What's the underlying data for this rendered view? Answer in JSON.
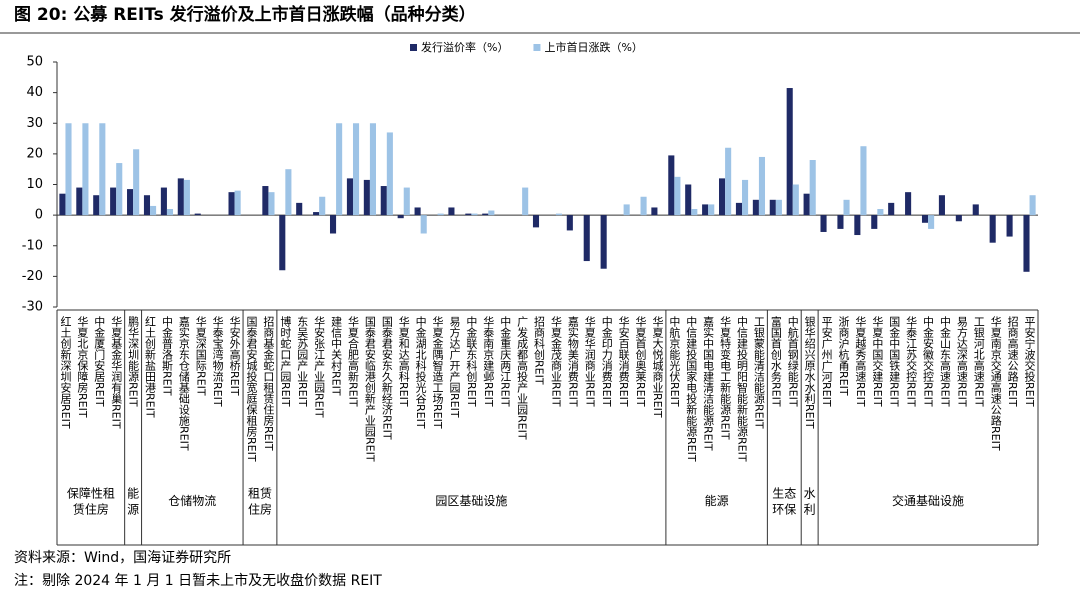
{
  "chart_data": {
    "type": "bar",
    "title": "图 20:  公募 REITs 发行溢价及上市首日涨跌幅（品种分类）",
    "source": "资料来源：Wind，国海证券研究所",
    "note": "注：剔除 2024 年 1 月 1 日暂未上市及无收盘价数据 REIT",
    "ylim": [
      -30,
      50
    ],
    "yticks": [
      50,
      40,
      30,
      20,
      10,
      0,
      -10,
      -20,
      -30
    ],
    "legend_position": "top",
    "groups": [
      {
        "label": "保障性租赁住房",
        "categories": [
          "红土创新深圳安居REIT",
          "华夏北京保障房REIT",
          "中金厦门安居REIT",
          "华夏基金华润有巢REIT"
        ]
      },
      {
        "label": "能源",
        "categories": [
          "鹏华深圳能源REIT"
        ]
      },
      {
        "label": "仓储物流",
        "categories": [
          "红土创新盐田港REIT",
          "中金普洛斯REIT",
          "嘉实京东仓储基础设施REIT",
          "华夏深国际REIT",
          "华泰宝湾物流REIT",
          "华安外高桥REIT"
        ]
      },
      {
        "label": "租赁住房",
        "categories": [
          "国泰君安城投宽庭保租房REIT",
          "招商基金蛇口租赁住房REIT"
        ]
      },
      {
        "label": "园区基础设施",
        "categories": [
          "博时蛇口产园REIT",
          "东吴苏园产业REIT",
          "华安张江产业园REIT",
          "建信中关村REIT",
          "华夏合肥高新REIT",
          "国泰君安临港创新产业园REIT",
          "国泰君安东久新经济REIT",
          "华夏和达高科REIT",
          "中金湖北科投光谷REIT",
          "华夏金隅智造工场REIT",
          "易方达广开产园REIT",
          "中金联东科创REIT",
          "华泰南京建邺REIT",
          "中金重庆两江REIT",
          "广发成都高投产业园REIT",
          "招商科创REIT",
          "华夏金茂商业REIT",
          "嘉实物美消费REIT",
          "华夏华润商业REIT",
          "中金印力消费REIT",
          "华安百联消费REIT",
          "华夏首创奥莱REIT",
          "华夏大悦城商业REIT"
        ]
      },
      {
        "label": "能源",
        "categories": [
          "中航京能光伏REIT",
          "中信建投国家电投新能源REIT",
          "嘉实中国电建清洁能源REIT",
          "华夏特变电工新能源REIT",
          "中信建投明阳智能新能源REIT",
          "工银蒙能清洁能源REIT"
        ]
      },
      {
        "label": "生态环保",
        "categories": [
          "富国首创水务REIT",
          "中航首钢绿能REIT"
        ]
      },
      {
        "label": "水利",
        "categories": [
          "银华绍兴原水水利REIT"
        ]
      },
      {
        "label": "交通基础设施",
        "categories": [
          "平安广州广河REIT",
          "浙商沪杭甬REIT",
          "华夏越秀高速REIT",
          "华夏中国交建REIT",
          "国金中国铁建REIT",
          "华泰江苏交控REIT",
          "中金安徽交控REIT",
          "中金山东高速REIT",
          "易方达深高速REIT",
          "工银河北高速REIT",
          "华夏南京交通高速公路REIT",
          "招商高速公路REIT",
          "平安宁波交投REIT"
        ]
      }
    ],
    "series": [
      {
        "name": "发行溢价率（%）",
        "color": "#1f2a66",
        "values": [
          7,
          9,
          6.5,
          9,
          8.5,
          6.5,
          9,
          12,
          0.5,
          0,
          7.5,
          0,
          9.5,
          -18,
          4,
          1,
          -6,
          12,
          11.5,
          9.5,
          -1,
          2.5,
          0,
          2.5,
          0.5,
          0.5,
          0,
          0,
          -4,
          0,
          -5,
          -15,
          -17.5,
          0,
          0,
          2.5,
          19.5,
          10,
          3.5,
          12,
          4,
          5,
          5,
          41.5,
          7,
          -5.5,
          -4.5,
          -6.5,
          -4.5,
          4,
          7.5,
          -2.5,
          6.5,
          -2,
          3.5,
          -9,
          -7,
          -18.5
        ]
      },
      {
        "name": "上市首日涨跌（%）",
        "color": "#9dc3e6",
        "values": [
          30,
          30,
          30,
          17,
          21.5,
          3,
          2,
          11.5,
          0,
          0,
          8,
          0,
          7.5,
          15,
          0,
          6,
          30,
          30,
          30,
          27,
          9,
          -6,
          0.5,
          0,
          0.5,
          1.5,
          0,
          9,
          0,
          0.5,
          0,
          0,
          0,
          3.5,
          6,
          0,
          12.5,
          2,
          3.5,
          22,
          11.5,
          19,
          5,
          10,
          18,
          0,
          5,
          22.5,
          2,
          0,
          0,
          -4.5,
          0,
          0,
          0,
          0,
          0,
          6.5
        ]
      }
    ]
  }
}
